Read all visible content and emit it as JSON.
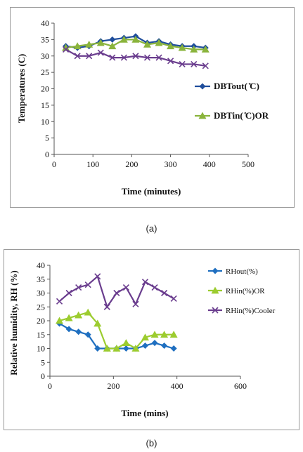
{
  "captions": {
    "a": "(a)",
    "b": "(b)"
  },
  "chart_data": [
    {
      "type": "line",
      "title": "",
      "xlabel": "Time (minutes)",
      "ylabel": "Temperatures (C)",
      "xlim": [
        0,
        500
      ],
      "ylim": [
        0,
        40
      ],
      "xticks": [
        0,
        100,
        200,
        300,
        400,
        500
      ],
      "yticks": [
        0,
        5,
        10,
        15,
        20,
        25,
        30,
        35,
        40
      ],
      "grid": false,
      "legend_position": "right",
      "x": [
        30,
        60,
        90,
        120,
        150,
        180,
        210,
        240,
        270,
        300,
        330,
        360,
        390
      ],
      "series": [
        {
          "name": "DBTout( ̊C)",
          "color": "#1f4e9c",
          "marker": "diamond",
          "values": [
            33,
            32.5,
            33,
            34.5,
            35,
            35.5,
            36,
            34,
            34.5,
            33.5,
            33,
            33,
            32.5
          ]
        },
        {
          "name": "DBTin( ̊C)OR",
          "color": "#8ab43c",
          "marker": "triangle",
          "values": [
            32.5,
            33,
            33.5,
            34,
            33,
            35,
            35,
            33.5,
            34,
            33,
            32.5,
            32,
            32
          ]
        },
        {
          "name": "",
          "color": "#6a3d8e",
          "marker": "x",
          "in_legend": false,
          "values": [
            32,
            30,
            30,
            31,
            29.5,
            29.5,
            30,
            29.5,
            29.5,
            28.5,
            27.5,
            27.5,
            27
          ]
        }
      ]
    },
    {
      "type": "line",
      "title": "",
      "xlabel": "Time (mins)",
      "ylabel": "Relative humidity, RH (%)",
      "xlim": [
        0,
        600
      ],
      "ylim": [
        0,
        40
      ],
      "xticks": [
        0,
        200,
        400,
        600
      ],
      "yticks": [
        0,
        5,
        10,
        15,
        20,
        25,
        30,
        35,
        40
      ],
      "grid": false,
      "legend_position": "right",
      "x": [
        30,
        60,
        90,
        120,
        150,
        180,
        210,
        240,
        270,
        300,
        330,
        360,
        390
      ],
      "series": [
        {
          "name": "RHout(%)",
          "color": "#1f6fc0",
          "marker": "diamond",
          "values": [
            19,
            17,
            16,
            15,
            10,
            10,
            10,
            10,
            10,
            11,
            12,
            11,
            10
          ]
        },
        {
          "name": "RHin(%)OR",
          "color": "#9ccc2f",
          "marker": "triangle",
          "values": [
            20,
            21,
            22,
            23,
            19,
            10,
            10,
            12,
            10,
            14,
            15,
            15,
            15
          ]
        },
        {
          "name": "RHin(%)Cooler",
          "color": "#6a3d8e",
          "marker": "x",
          "values": [
            27,
            30,
            32,
            33,
            36,
            25,
            30,
            32,
            26,
            34,
            32,
            30,
            28
          ]
        }
      ]
    }
  ]
}
